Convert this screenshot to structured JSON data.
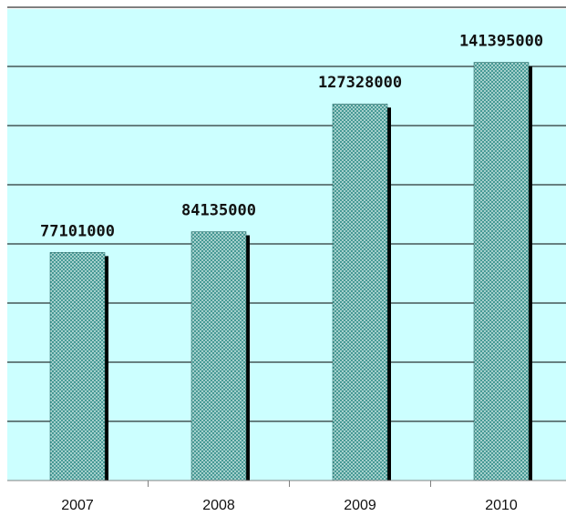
{
  "chart_data": {
    "type": "bar",
    "categories": [
      "2007",
      "2008",
      "2009",
      "2010"
    ],
    "values": [
      77101000,
      84135000,
      127328000,
      141395000
    ],
    "data_labels": [
      "77101000",
      "84135000",
      "127328000",
      "141395000"
    ],
    "title": "",
    "xlabel": "",
    "ylabel": "",
    "ylim": [
      0,
      160000000
    ],
    "y_major_unit": 20000000,
    "grid": true,
    "legend": "none",
    "colors": {
      "plot_background": "#ccffff",
      "bar_fill": "#2e8b87",
      "bar_pattern": "#bcdeda",
      "bar_shadow": "#000000",
      "gridline": "#000000",
      "axis": "#808080"
    }
  }
}
